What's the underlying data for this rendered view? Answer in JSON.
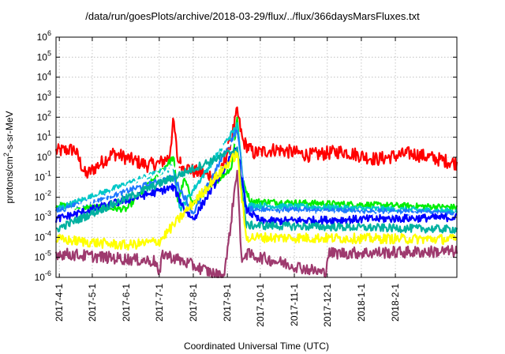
{
  "chart_data": {
    "type": "line",
    "title": "/data/run/goesPlots/archive/2018-03-29/flux/../flux/366daysMarsFluxes.txt",
    "xlabel": "Coordinated Universal Time (UTC)",
    "ylabel": "protons/cm²-s-sr-MeV",
    "ylabel_main": "protons/cm",
    "ylabel_sup": "2",
    "ylabel_rest": "-s-sr-MeV",
    "yscale": "log",
    "ylim": [
      1e-06,
      1000000.0
    ],
    "y_ticks": [
      {
        "base": "10",
        "exp": "-6"
      },
      {
        "base": "10",
        "exp": "-5"
      },
      {
        "base": "10",
        "exp": "-4"
      },
      {
        "base": "10",
        "exp": "-3"
      },
      {
        "base": "10",
        "exp": "-2"
      },
      {
        "base": "10",
        "exp": "-1"
      },
      {
        "base": "10",
        "exp": "0"
      },
      {
        "base": "10",
        "exp": "1"
      },
      {
        "base": "10",
        "exp": "2"
      },
      {
        "base": "10",
        "exp": "3"
      },
      {
        "base": "10",
        "exp": "4"
      },
      {
        "base": "10",
        "exp": "5"
      },
      {
        "base": "10",
        "exp": "6"
      }
    ],
    "xlim": [
      "2017-03-29",
      "2018-03-29"
    ],
    "x_ticks": [
      "2017-4-1",
      "2017-5-1",
      "2017-6-1",
      "2017-7-1",
      "2017-8-1",
      "2017-9-1",
      "2017-10-1",
      "2017-11-1",
      "2017-12-1",
      "2018-1-1",
      "2018-2-1"
    ],
    "grid": true,
    "series": [
      {
        "color": "#ff0000",
        "baseline_log10": 0.1,
        "noise": 0.35,
        "points": [
          [
            "2017-03-29",
            0.3
          ],
          [
            "2017-04-15",
            0.4
          ],
          [
            "2017-04-25",
            -0.9
          ],
          [
            "2017-05-20",
            0.2
          ],
          [
            "2017-06-20",
            -0.4
          ],
          [
            "2017-07-01",
            -0.3
          ],
          [
            "2017-07-10",
            0.0
          ],
          [
            "2017-07-14",
            1.8
          ],
          [
            "2017-07-18",
            -0.2
          ],
          [
            "2017-08-01",
            -0.7
          ],
          [
            "2017-08-25",
            -1.0
          ],
          [
            "2017-09-05",
            1.0
          ],
          [
            "2017-09-10",
            2.3
          ],
          [
            "2017-09-15",
            0.8
          ],
          [
            "2017-09-25",
            0.2
          ],
          [
            "2017-10-15",
            0.4
          ],
          [
            "2017-11-15",
            0.1
          ],
          [
            "2017-12-15",
            0.3
          ],
          [
            "2018-01-15",
            -0.1
          ],
          [
            "2018-02-15",
            0.2
          ],
          [
            "2018-03-29",
            -0.3
          ]
        ]
      },
      {
        "color": "#00ee00",
        "baseline_log10": -2.5,
        "noise": 0.15,
        "points": [
          [
            "2017-03-29",
            -2.4
          ],
          [
            "2017-06-01",
            -2.6
          ],
          [
            "2017-07-14",
            0.0
          ],
          [
            "2017-07-18",
            -2.2
          ],
          [
            "2017-07-24",
            -1.1
          ],
          [
            "2017-08-01",
            -2.3
          ],
          [
            "2017-09-05",
            -0.5
          ],
          [
            "2017-09-10",
            2.0
          ],
          [
            "2017-09-15",
            -1.2
          ],
          [
            "2017-09-22",
            -2.2
          ],
          [
            "2018-03-29",
            -2.5
          ]
        ]
      },
      {
        "color": "#00c8c8",
        "baseline_log10": -2.6,
        "noise": 0.15,
        "points": [
          [
            "2017-03-29",
            -2.6
          ],
          [
            "2017-07-14",
            -0.5
          ],
          [
            "2017-07-20",
            -2.6
          ],
          [
            "2017-09-10",
            1.6
          ],
          [
            "2017-09-18",
            -2.4
          ],
          [
            "2018-03-29",
            -2.7
          ]
        ]
      },
      {
        "color": "#1e78ff",
        "baseline_log10": -2.75,
        "noise": 0.15,
        "points": [
          [
            "2017-03-29",
            -2.7
          ],
          [
            "2017-07-14",
            -1.0
          ],
          [
            "2017-07-24",
            -2.0
          ],
          [
            "2017-08-01",
            -2.8
          ],
          [
            "2017-09-10",
            1.4
          ],
          [
            "2017-09-18",
            -2.6
          ],
          [
            "2018-03-29",
            -2.8
          ]
        ]
      },
      {
        "color": "#ffffff",
        "baseline_log10": -2.9,
        "noise": 0.12,
        "points": [
          [
            "2017-03-29",
            -2.9
          ],
          [
            "2017-09-10",
            0.8
          ],
          [
            "2017-09-18",
            -2.8
          ],
          [
            "2018-03-29",
            -2.9
          ]
        ]
      },
      {
        "color": "#0000ff",
        "baseline_log10": -3.1,
        "noise": 0.2,
        "points": [
          [
            "2017-03-29",
            -3.1
          ],
          [
            "2017-07-14",
            -1.5
          ],
          [
            "2017-07-24",
            -2.6
          ],
          [
            "2017-08-01",
            -3.1
          ],
          [
            "2017-09-10",
            0.5
          ],
          [
            "2017-09-18",
            -2.6
          ],
          [
            "2017-10-01",
            -3.2
          ],
          [
            "2018-03-29",
            -3.0
          ]
        ]
      },
      {
        "color": "#00b0a0",
        "baseline_log10": -3.6,
        "noise": 0.2,
        "points": [
          [
            "2017-03-29",
            -3.6
          ],
          [
            "2017-09-10",
            0.4
          ],
          [
            "2017-09-18",
            -3.4
          ],
          [
            "2018-03-29",
            -3.6
          ]
        ]
      },
      {
        "color": "#ffff00",
        "baseline_log10": -4.1,
        "noise": 0.25,
        "points": [
          [
            "2017-03-29",
            -4.1
          ],
          [
            "2017-06-01",
            -4.4
          ],
          [
            "2017-07-01",
            -4.2
          ],
          [
            "2017-09-10",
            0.2
          ],
          [
            "2017-09-18",
            -4.0
          ],
          [
            "2018-03-29",
            -4.1
          ]
        ]
      },
      {
        "color": "#9e3a6e",
        "baseline_log10": -4.8,
        "noise": 0.3,
        "points": [
          [
            "2017-03-29",
            -4.8
          ],
          [
            "2017-06-28",
            -5.2
          ],
          [
            "2017-07-01",
            -6.0
          ],
          [
            "2017-07-04",
            -4.8
          ],
          [
            "2017-08-28",
            -6.0
          ],
          [
            "2017-09-01",
            -4.8
          ],
          [
            "2017-09-10",
            -0.5
          ],
          [
            "2017-09-14",
            -5.5
          ],
          [
            "2017-09-16",
            -4.8
          ],
          [
            "2017-11-29",
            -5.8
          ],
          [
            "2017-12-02",
            -4.8
          ],
          [
            "2018-03-29",
            -4.7
          ]
        ]
      }
    ]
  }
}
